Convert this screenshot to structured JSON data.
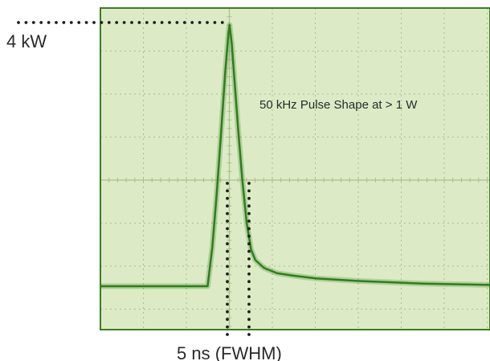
{
  "chart_data": {
    "type": "line",
    "annotation": "50 kHz Pulse Shape at > 1 W",
    "peak_label": "4 kW",
    "width_label": "5 ns (FWHM)",
    "grid": true,
    "series": [
      {
        "points": [
          [
            0.0,
            0.0
          ],
          [
            0.1,
            0.0
          ],
          [
            0.2,
            0.0
          ],
          [
            0.3,
            0.0
          ],
          [
            0.4,
            0.0
          ],
          [
            0.498,
            0.0
          ],
          [
            0.52,
            0.15
          ],
          [
            0.54,
            0.35
          ],
          [
            0.56,
            0.58
          ],
          [
            0.58,
            0.82
          ],
          [
            0.595,
            0.97
          ],
          [
            0.6,
            1.0
          ],
          [
            0.61,
            0.93
          ],
          [
            0.62,
            0.82
          ],
          [
            0.64,
            0.6
          ],
          [
            0.66,
            0.4
          ],
          [
            0.68,
            0.24
          ],
          [
            0.7,
            0.14
          ],
          [
            0.72,
            0.1
          ],
          [
            0.76,
            0.07
          ],
          [
            0.82,
            0.05
          ],
          [
            0.9,
            0.04
          ],
          [
            1.0,
            0.03
          ],
          [
            1.2,
            0.02
          ],
          [
            1.5,
            0.01
          ],
          [
            1.81,
            0.005
          ]
        ]
      }
    ]
  },
  "colors": {
    "plot_background": "#dcebc6",
    "grid_lines": "#a9bf8c",
    "frame": "#3c7d1f",
    "trace": "#2f7d1c",
    "markers": "#1f1f1f",
    "text": "#2a2a2a"
  }
}
